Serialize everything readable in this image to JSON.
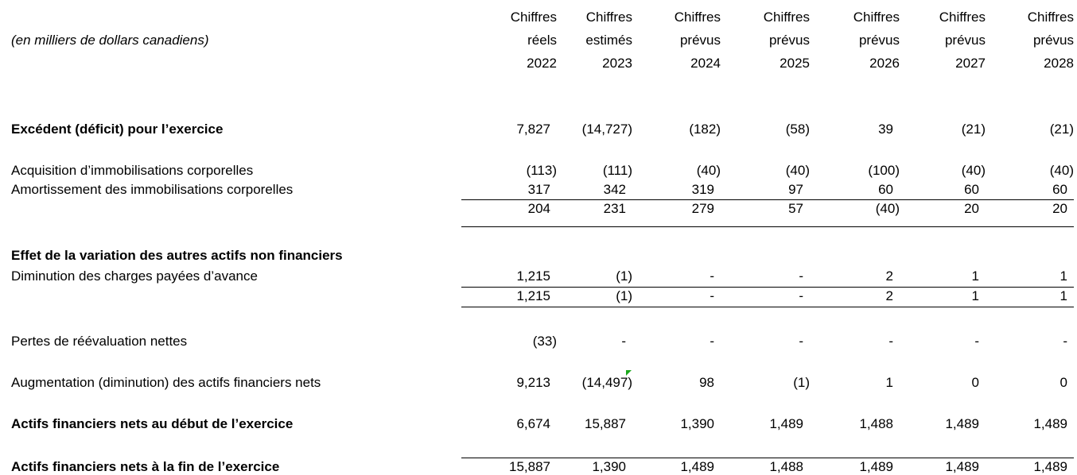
{
  "header": {
    "unit": "(en milliers de dollars canadiens)",
    "columns": [
      [
        "Chiffres",
        "réels",
        "2022"
      ],
      [
        "Chiffres",
        "estimés",
        "2023"
      ],
      [
        "Chiffres",
        "prévus",
        "2024"
      ],
      [
        "Chiffres",
        "prévus",
        "2025"
      ],
      [
        "Chiffres",
        "prévus",
        "2026"
      ],
      [
        "Chiffres",
        "prévus",
        "2027"
      ],
      [
        "Chiffres",
        "prévus",
        "2028"
      ]
    ]
  },
  "table": {
    "rows": [
      {
        "label": "Excédent (déficit) pour l’exercice",
        "values": [
          "7,827",
          "(14,727)",
          "(182)",
          "(58)",
          "39",
          "(21)",
          "(21)"
        ]
      },
      {
        "label": "Acquisition d’immobilisations corporelles",
        "values": [
          "(113)",
          "(111)",
          "(40)",
          "(40)",
          "(100)",
          "(40)",
          "(40)"
        ]
      },
      {
        "label": "Amortissement des immobilisations corporelles",
        "values": [
          "317",
          "342",
          "319",
          "97",
          "60",
          "60",
          "60"
        ]
      },
      {
        "label": null,
        "values": [
          "204",
          "231",
          "279",
          "57",
          "(40)",
          "20",
          "20"
        ]
      },
      {
        "label": "Effet de la variation des autres actifs non financiers",
        "values": null
      },
      {
        "label": "Diminution des charges payées d’avance",
        "values": [
          "1,215",
          "(1)",
          "-",
          "-",
          "2",
          "1",
          "1"
        ]
      },
      {
        "label": null,
        "values": [
          "1,215",
          "(1)",
          "-",
          "-",
          "2",
          "1",
          "1"
        ]
      },
      {
        "label": "Pertes de réévaluation nettes",
        "values": [
          "(33)",
          "-",
          "-",
          "-",
          "-",
          "-",
          "-"
        ]
      },
      {
        "label": "Augmentation (diminution) des actifs financiers nets",
        "values": [
          "9,213",
          "(14,497)",
          "98",
          "(1)",
          "1",
          "0",
          "0"
        ]
      },
      {
        "label": "Actifs financiers nets au début de l’exercice",
        "values": [
          "6,674",
          "15,887",
          "1,390",
          "1,489",
          "1,488",
          "1,489",
          "1,489"
        ]
      },
      {
        "label": "Actifs financiers nets à la fin de l’exercice",
        "values": [
          "15,887",
          "1,390",
          "1,489",
          "1,488",
          "1,489",
          "1,489",
          "1,489"
        ]
      }
    ]
  }
}
